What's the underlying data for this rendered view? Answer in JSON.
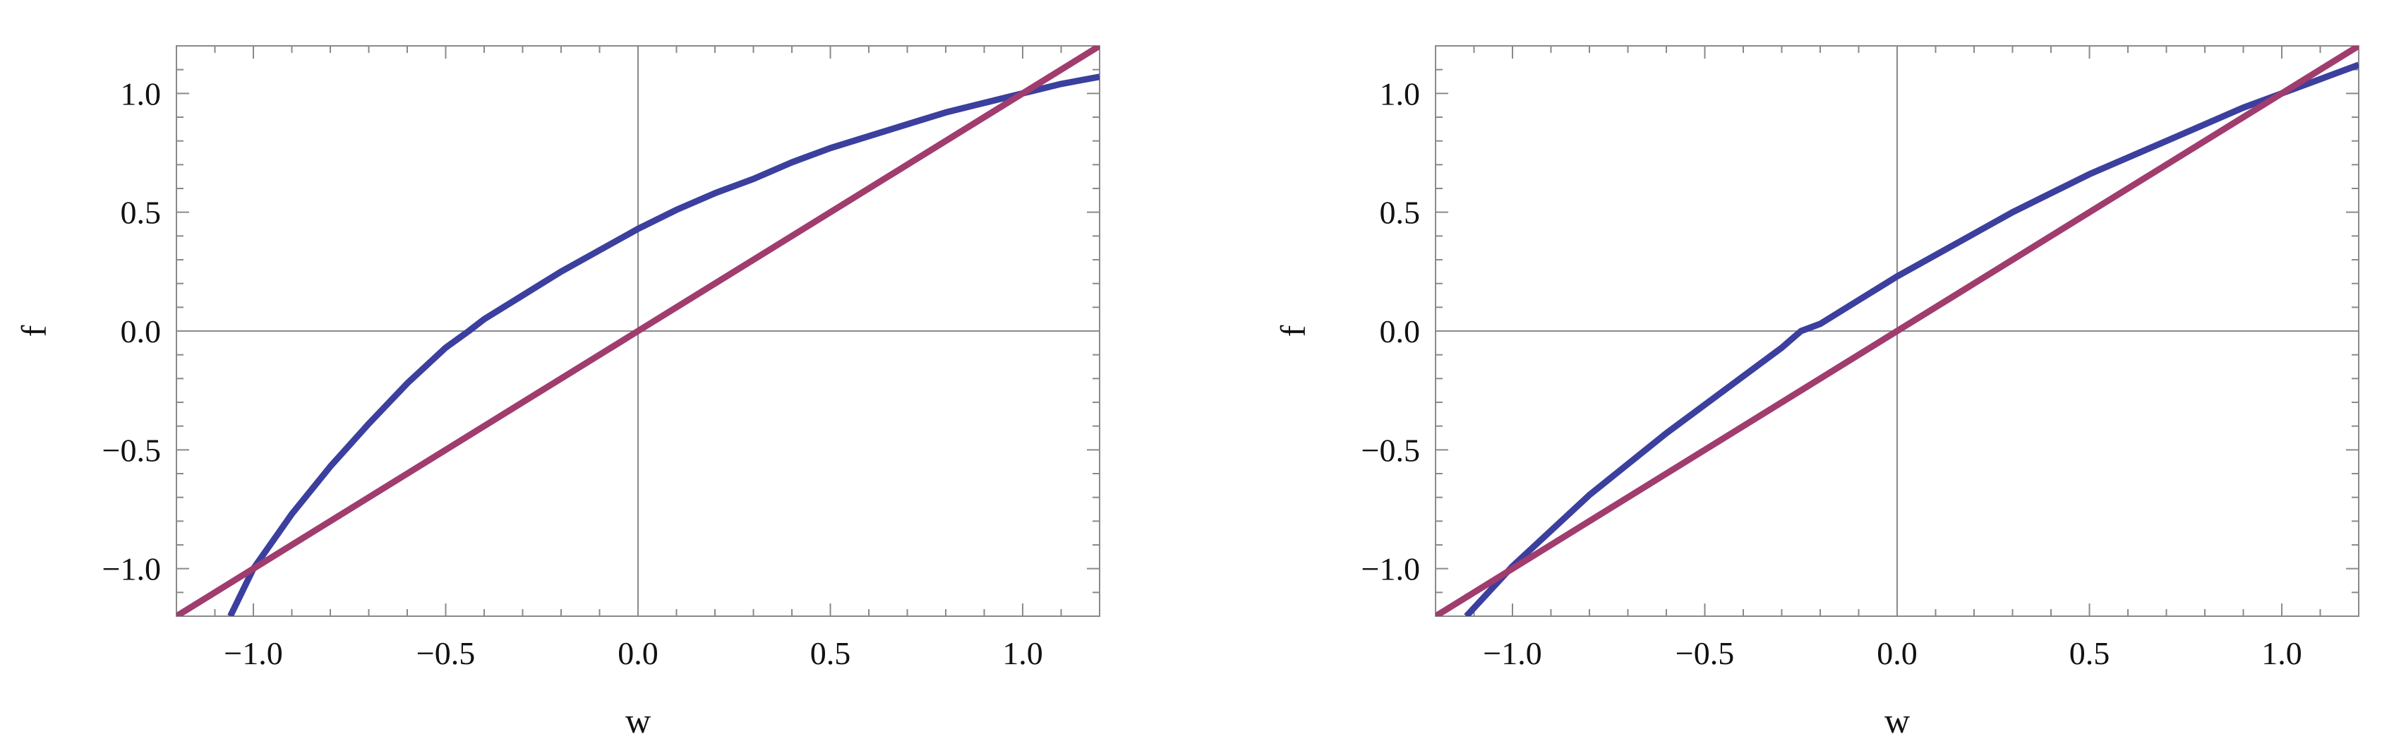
{
  "chart_data": [
    {
      "type": "line",
      "xlabel": "w",
      "ylabel": "f",
      "xlim": [
        -1.2,
        1.2
      ],
      "ylim": [
        -1.2,
        1.2
      ],
      "xticks": [
        -1.0,
        -0.5,
        0.0,
        0.5,
        1.0
      ],
      "yticks": [
        -1.0,
        -0.5,
        0.0,
        0.5,
        1.0
      ],
      "xtick_labels": [
        "−1.0",
        "−0.5",
        "0.0",
        "0.5",
        "1.0"
      ],
      "ytick_labels": [
        "−1.0",
        "−0.5",
        "0.0",
        "0.5",
        "1.0"
      ],
      "grid": false,
      "series": [
        {
          "color": "#3b3f9e",
          "x": [
            -1.06,
            -1.0,
            -0.9,
            -0.8,
            -0.7,
            -0.6,
            -0.5,
            -0.44,
            -0.4,
            -0.3,
            -0.2,
            -0.1,
            0.0,
            0.1,
            0.2,
            0.3,
            0.4,
            0.5,
            0.6,
            0.7,
            0.8,
            0.9,
            1.0,
            1.1,
            1.2
          ],
          "values": [
            -1.2,
            -1.0,
            -0.77,
            -0.57,
            -0.39,
            -0.22,
            -0.07,
            0.0,
            0.05,
            0.15,
            0.25,
            0.34,
            0.43,
            0.51,
            0.58,
            0.64,
            0.71,
            0.77,
            0.82,
            0.87,
            0.92,
            0.96,
            1.0,
            1.04,
            1.07
          ]
        },
        {
          "color": "#a03c6e",
          "x": [
            -1.2,
            1.2
          ],
          "values": [
            -1.2,
            1.2
          ]
        }
      ]
    },
    {
      "type": "line",
      "xlabel": "w",
      "ylabel": "f",
      "xlim": [
        -1.2,
        1.2
      ],
      "ylim": [
        -1.2,
        1.2
      ],
      "xticks": [
        -1.0,
        -0.5,
        0.0,
        0.5,
        1.0
      ],
      "yticks": [
        -1.0,
        -0.5,
        0.0,
        0.5,
        1.0
      ],
      "xtick_labels": [
        "−1.0",
        "−0.5",
        "0.0",
        "0.5",
        "1.0"
      ],
      "ytick_labels": [
        "−1.0",
        "−0.5",
        "0.0",
        "0.5",
        "1.0"
      ],
      "grid": false,
      "series": [
        {
          "color": "#3b3f9e",
          "x": [
            -1.12,
            -1.0,
            -0.9,
            -0.8,
            -0.7,
            -0.6,
            -0.5,
            -0.4,
            -0.3,
            -0.25,
            -0.2,
            -0.1,
            0.0,
            0.1,
            0.2,
            0.3,
            0.4,
            0.5,
            0.6,
            0.7,
            0.8,
            0.9,
            1.0,
            1.1,
            1.2
          ],
          "values": [
            -1.2,
            -0.99,
            -0.84,
            -0.69,
            -0.56,
            -0.43,
            -0.31,
            -0.19,
            -0.07,
            0.0,
            0.03,
            0.13,
            0.23,
            0.32,
            0.41,
            0.5,
            0.58,
            0.66,
            0.73,
            0.8,
            0.87,
            0.94,
            1.0,
            1.06,
            1.12
          ]
        },
        {
          "color": "#a03c6e",
          "x": [
            -1.2,
            1.2
          ],
          "values": [
            -1.2,
            1.2
          ]
        }
      ]
    }
  ]
}
